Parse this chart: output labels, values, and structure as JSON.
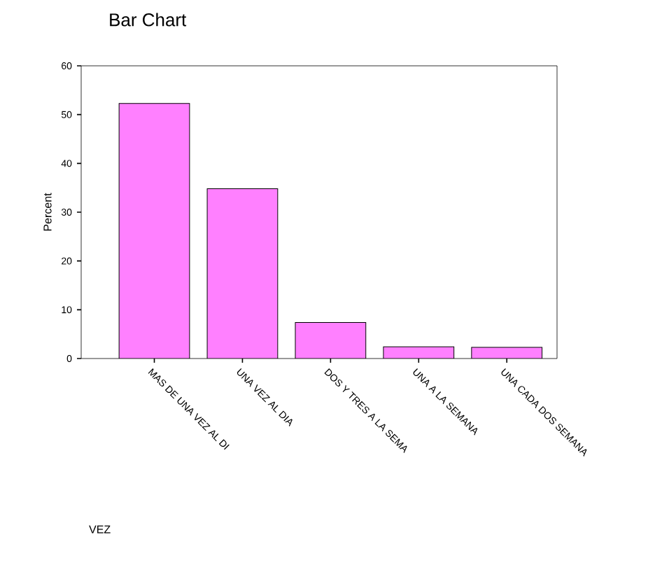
{
  "chart_data": {
    "type": "bar",
    "title": "Bar Chart",
    "annotations": [
      "VEZ"
    ],
    "ylabel": "Percent",
    "categories": [
      "MAS DE UNA VEZ AL DI",
      "UNA VEZ AL DIA",
      "DOS Y TRES A LA SEMA",
      "UNA A LA SEMANA",
      "UNA CADA DOS SEMANA"
    ],
    "values": [
      52.3,
      34.8,
      7.4,
      2.4,
      2.3
    ],
    "color": "#ff80ff",
    "ylim": [
      0,
      60
    ],
    "yticks": [
      0,
      10,
      20,
      30,
      40,
      50,
      60
    ],
    "grid": false
  }
}
